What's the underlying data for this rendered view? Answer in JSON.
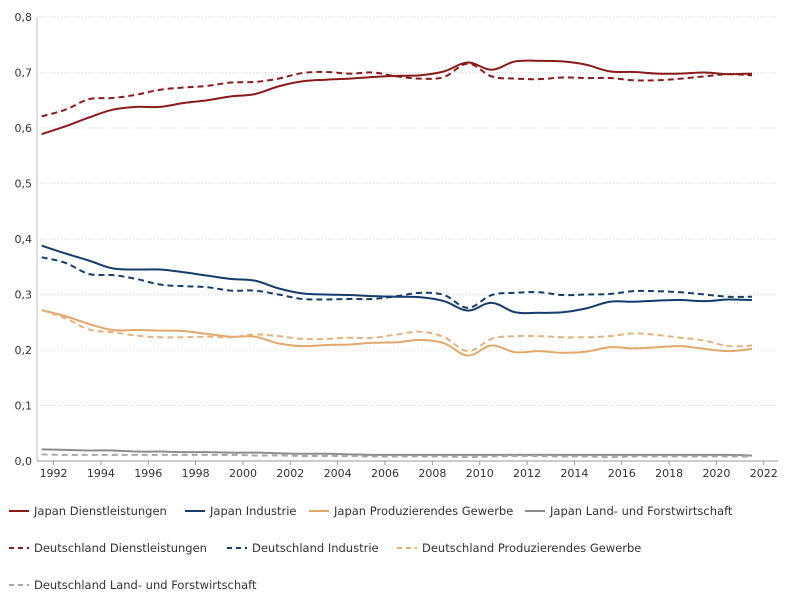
{
  "chart_data": {
    "type": "line",
    "title": "",
    "xlabel": "",
    "ylabel": "",
    "xlim": [
      1991.3,
      2022.6
    ],
    "ylim": [
      0,
      0.8
    ],
    "x_ticks": [
      1992,
      1994,
      1996,
      1998,
      2000,
      2002,
      2004,
      2006,
      2008,
      2010,
      2012,
      2014,
      2016,
      2018,
      2020,
      2022
    ],
    "x_tick_labels": [
      "1992",
      "1994",
      "1996",
      "1998",
      "2000",
      "2002",
      "2004",
      "2006",
      "2008",
      "2010",
      "2012",
      "2014",
      "2016",
      "2018",
      "2020",
      "2022"
    ],
    "y_ticks": [
      0,
      0.1,
      0.2,
      0.3,
      0.4,
      0.5,
      0.6,
      0.7,
      0.8
    ],
    "y_tick_labels": [
      "0,0",
      "0,1",
      "0,2",
      "0,3",
      "0,4",
      "0,5",
      "0,6",
      "0,7",
      "0,8"
    ],
    "grid": "horizontal",
    "legend_position": "bottom",
    "x": [
      1991.5,
      1992.5,
      1993.5,
      1994.5,
      1995.5,
      1996.5,
      1997.5,
      1998.5,
      1999.5,
      2000.5,
      2001.5,
      2002.5,
      2003.5,
      2004.5,
      2005.5,
      2006.5,
      2007.5,
      2008.5,
      2009.5,
      2010.5,
      2011.5,
      2012.5,
      2013.5,
      2014.5,
      2015.5,
      2016.5,
      2017.5,
      2018.5,
      2019.5,
      2020.5,
      2021.5
    ],
    "series": [
      {
        "name": "Japan Dienstleistungen",
        "color": "#8b1a1a",
        "dash": "solid",
        "values": [
          0.589,
          0.603,
          0.619,
          0.633,
          0.638,
          0.638,
          0.645,
          0.65,
          0.657,
          0.661,
          0.675,
          0.684,
          0.687,
          0.689,
          0.692,
          0.694,
          0.695,
          0.702,
          0.718,
          0.705,
          0.72,
          0.721,
          0.72,
          0.714,
          0.702,
          0.701,
          0.698,
          0.698,
          0.7,
          0.697,
          0.698
        ]
      },
      {
        "name": "Japan Industrie",
        "color": "#143d6b",
        "dash": "solid",
        "values": [
          0.388,
          0.374,
          0.361,
          0.347,
          0.345,
          0.345,
          0.34,
          0.334,
          0.328,
          0.325,
          0.311,
          0.302,
          0.3,
          0.299,
          0.297,
          0.296,
          0.295,
          0.288,
          0.271,
          0.285,
          0.268,
          0.267,
          0.268,
          0.275,
          0.287,
          0.287,
          0.289,
          0.29,
          0.288,
          0.291,
          0.29
        ]
      },
      {
        "name": "Japan Produzierendes Gewerbe",
        "color": "#e0a86a",
        "dash": "solid",
        "values": [
          0.272,
          0.261,
          0.247,
          0.236,
          0.236,
          0.235,
          0.234,
          0.229,
          0.224,
          0.224,
          0.212,
          0.207,
          0.209,
          0.21,
          0.213,
          0.214,
          0.218,
          0.212,
          0.19,
          0.208,
          0.196,
          0.198,
          0.195,
          0.197,
          0.205,
          0.203,
          0.205,
          0.207,
          0.202,
          0.198,
          0.202
        ]
      },
      {
        "name": "Japan Land- und Forstwirtschaft",
        "color": "#8c8c8c",
        "dash": "solid",
        "values": [
          0.021,
          0.02,
          0.019,
          0.019,
          0.017,
          0.017,
          0.016,
          0.016,
          0.015,
          0.015,
          0.014,
          0.013,
          0.013,
          0.012,
          0.011,
          0.011,
          0.011,
          0.011,
          0.011,
          0.011,
          0.011,
          0.011,
          0.011,
          0.011,
          0.011,
          0.011,
          0.011,
          0.011,
          0.011,
          0.011,
          0.01
        ]
      },
      {
        "name": "Deutschland Dienstleistungen",
        "color": "#8b1a1a",
        "dash": "dashed",
        "values": [
          0.621,
          0.633,
          0.652,
          0.654,
          0.66,
          0.669,
          0.673,
          0.676,
          0.682,
          0.683,
          0.689,
          0.699,
          0.701,
          0.698,
          0.7,
          0.693,
          0.689,
          0.692,
          0.716,
          0.693,
          0.689,
          0.688,
          0.691,
          0.69,
          0.69,
          0.686,
          0.686,
          0.689,
          0.693,
          0.697,
          0.695
        ]
      },
      {
        "name": "Deutschland Industrie",
        "color": "#143d6b",
        "dash": "dashed",
        "values": [
          0.367,
          0.357,
          0.337,
          0.335,
          0.328,
          0.318,
          0.315,
          0.313,
          0.307,
          0.307,
          0.3,
          0.292,
          0.291,
          0.292,
          0.292,
          0.297,
          0.303,
          0.299,
          0.276,
          0.299,
          0.303,
          0.304,
          0.299,
          0.3,
          0.301,
          0.306,
          0.306,
          0.304,
          0.3,
          0.296,
          0.296
        ]
      },
      {
        "name": "Deutschland Produzierendes Gewerbe",
        "color": "#e8b07a",
        "dash": "dashed",
        "values": [
          0.272,
          0.257,
          0.237,
          0.232,
          0.226,
          0.223,
          0.223,
          0.224,
          0.223,
          0.228,
          0.225,
          0.22,
          0.22,
          0.222,
          0.222,
          0.228,
          0.233,
          0.223,
          0.198,
          0.22,
          0.225,
          0.225,
          0.223,
          0.223,
          0.225,
          0.23,
          0.227,
          0.222,
          0.217,
          0.207,
          0.208
        ]
      },
      {
        "name": "Deutschland Land- und Forstwirtschaft",
        "color": "#a8a8a8",
        "dash": "dashed",
        "values": [
          0.012,
          0.011,
          0.011,
          0.011,
          0.011,
          0.011,
          0.011,
          0.011,
          0.011,
          0.01,
          0.01,
          0.009,
          0.009,
          0.009,
          0.008,
          0.008,
          0.008,
          0.008,
          0.007,
          0.008,
          0.009,
          0.009,
          0.008,
          0.008,
          0.007,
          0.008,
          0.008,
          0.008,
          0.008,
          0.008,
          0.008
        ]
      }
    ]
  }
}
